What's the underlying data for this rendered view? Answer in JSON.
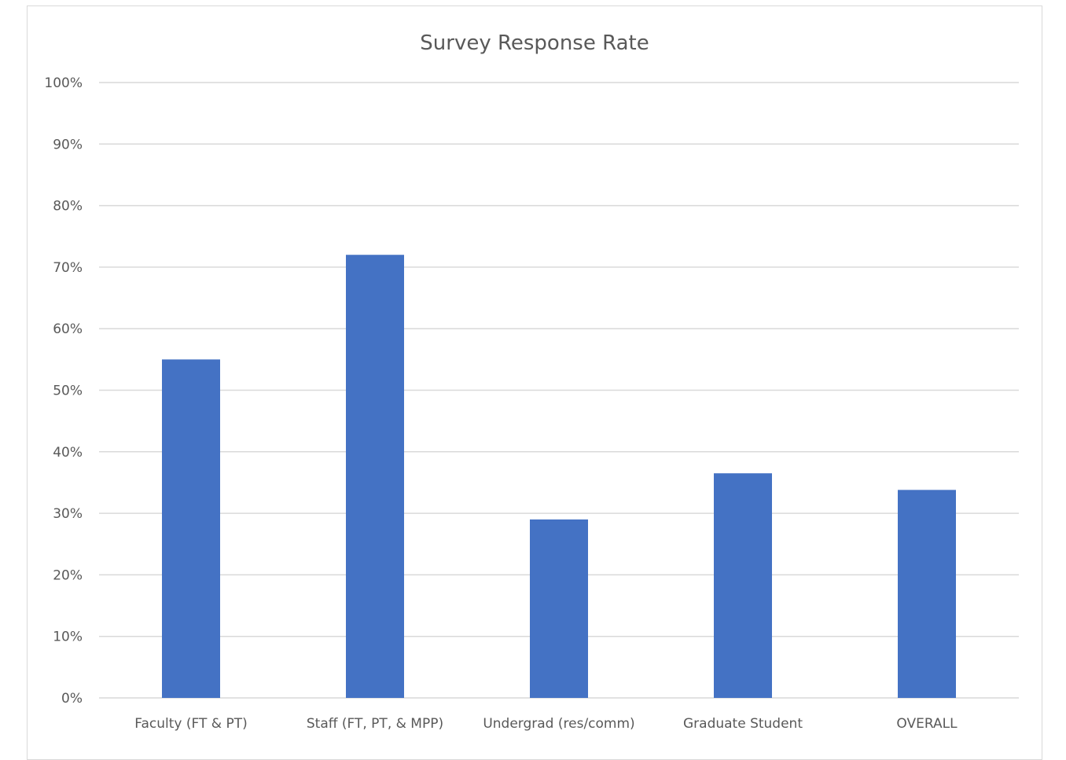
{
  "chart_data": {
    "type": "bar",
    "title": "Survey Response Rate",
    "xlabel": "",
    "ylabel": "",
    "categories": [
      "Faculty (FT & PT)",
      "Staff (FT, PT, & MPP)",
      "Undergrad (res/comm)",
      "Graduate Student",
      "OVERALL"
    ],
    "values": [
      0.55,
      0.72,
      0.29,
      0.365,
      0.338
    ],
    "ylim": [
      0,
      1
    ],
    "yticks": [
      0,
      0.1,
      0.2,
      0.3,
      0.4,
      0.5,
      0.6,
      0.7,
      0.8,
      0.9,
      1.0
    ],
    "ytick_labels": [
      "0%",
      "10%",
      "20%",
      "30%",
      "40%",
      "50%",
      "60%",
      "70%",
      "80%",
      "90%",
      "100%"
    ],
    "grid": true,
    "legend": "none",
    "colors": {
      "bar": "#4472c4",
      "grid": "#d9d9d9",
      "text": "#595959"
    }
  }
}
